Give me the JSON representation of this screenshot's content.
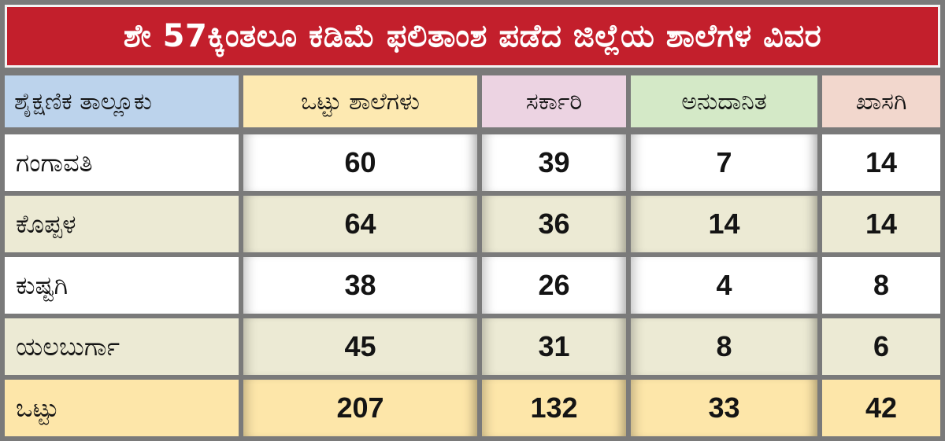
{
  "title": "ಶೇ 57ಕ್ಕಿಂತಲೂ ಕಡಿಮೆ ಫಲಿತಾಂಶ ಪಡೆದ ಜಿಲ್ಲೆಯ ಶಾಲೆಗಳ ವಿವರ",
  "colors": {
    "title_bg": "#c31f2c",
    "header_taluk": "#bcd3ec",
    "header_total": "#fde9b1",
    "header_govt": "#ecd3e2",
    "header_aided": "#d4e9c7",
    "header_private": "#f2d7cd",
    "row_white": "#ffffff",
    "row_alt": "#ecead4",
    "row_total": "#fde6a9"
  },
  "chart_data": {
    "type": "table",
    "title": "ಶೇ 57ಕ್ಕಿಂತಲೂ ಕಡಿಮೆ ಫಲಿತಾಂಶ ಪಡೆದ ಜಿಲ್ಲೆಯ ಶಾಲೆಗಳ ವಿವರ",
    "columns": [
      "ಶೈಕ್ಷಣಿಕ ತಾಲ್ಲೂಕು",
      "ಒಟ್ಟು ಶಾಲೆಗಳು",
      "ಸರ್ಕಾರಿ",
      "ಅನುದಾನಿತ",
      "ಖಾಸಗಿ"
    ],
    "rows": [
      {
        "taluk": "ಗಂಗಾವತಿ",
        "values": [
          "60",
          "39",
          "7",
          "14"
        ]
      },
      {
        "taluk": "ಕೊಪ್ಪಳ",
        "values": [
          "64",
          "36",
          "14",
          "14"
        ]
      },
      {
        "taluk": "ಕುಷ್ಟಗಿ",
        "values": [
          "38",
          "26",
          "4",
          "8"
        ]
      },
      {
        "taluk": "ಯಲಬುರ್ಗಾ",
        "values": [
          "45",
          "31",
          "8",
          "6"
        ]
      },
      {
        "taluk": "ಒಟ್ಟು",
        "values": [
          "207",
          "132",
          "33",
          "42"
        ]
      }
    ]
  }
}
